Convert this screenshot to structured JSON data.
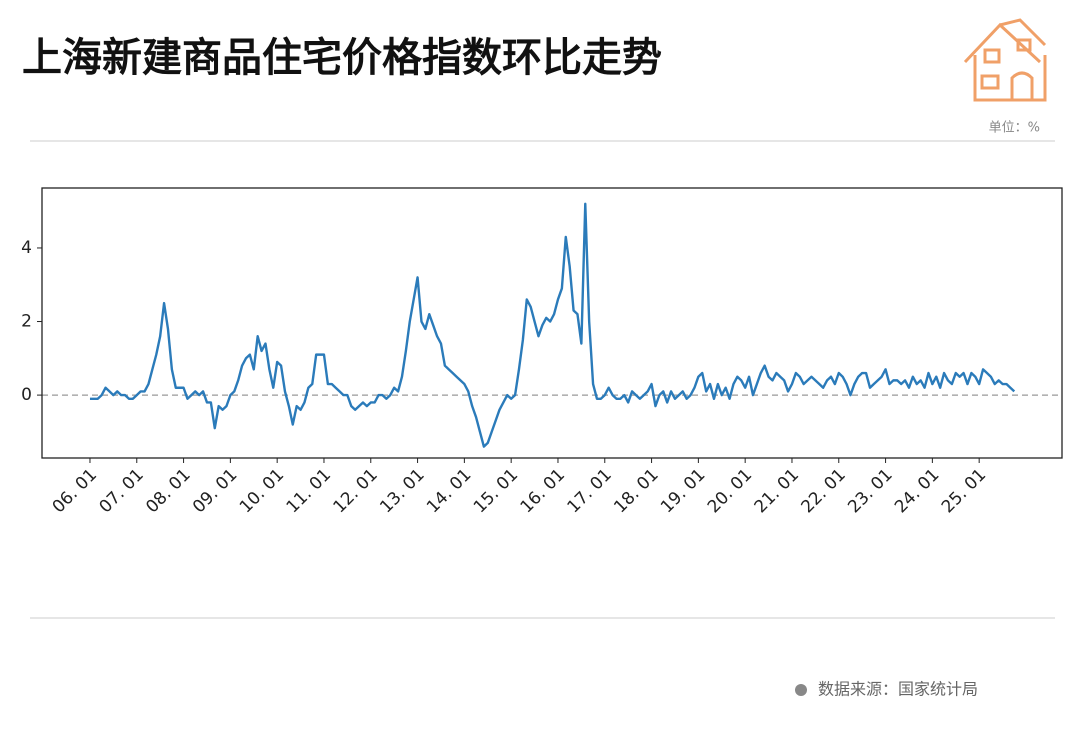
{
  "title": "上海新建商品住宅价格指数环比走势",
  "unit": "单位：%",
  "source": "数据来源：国家统计局",
  "chart_data": {
    "type": "line",
    "grid": false,
    "zero_line": true,
    "categories": [
      "06. 01",
      null,
      null,
      null,
      null,
      null,
      null,
      null,
      null,
      null,
      null,
      null,
      "07. 01",
      null,
      null,
      null,
      null,
      null,
      null,
      null,
      null,
      null,
      null,
      null,
      "08. 01",
      null,
      null,
      null,
      null,
      null,
      null,
      null,
      null,
      null,
      null,
      null,
      "09. 01",
      null,
      null,
      null,
      null,
      null,
      null,
      null,
      null,
      null,
      null,
      null,
      "10. 01",
      null,
      null,
      null,
      null,
      null,
      null,
      null,
      null,
      null,
      null,
      null,
      "11. 01",
      null,
      null,
      null,
      null,
      null,
      null,
      null,
      null,
      null,
      null,
      null,
      "12. 01",
      null,
      null,
      null,
      null,
      null,
      null,
      null,
      null,
      null,
      null,
      null,
      "13. 01",
      null,
      null,
      null,
      null,
      null,
      null,
      null,
      null,
      null,
      null,
      null,
      "14. 01",
      null,
      null,
      null,
      null,
      null,
      null,
      null,
      null,
      null,
      null,
      null,
      "15. 01",
      null,
      null,
      null,
      null,
      null,
      null,
      null,
      null,
      null,
      null,
      null,
      "16. 01",
      null,
      null,
      null,
      null,
      null,
      null,
      null,
      null,
      null,
      null,
      null,
      "17. 01",
      null,
      null,
      null,
      null,
      null,
      null,
      null,
      null,
      null,
      null,
      null,
      "18. 01",
      null,
      null,
      null,
      null,
      null,
      null,
      null,
      null,
      null,
      null,
      null,
      "19. 01",
      null,
      null,
      null,
      null,
      null,
      null,
      null,
      null,
      null,
      null,
      null,
      "20. 01",
      null,
      null,
      null,
      null,
      null,
      null,
      null,
      null,
      null,
      null,
      null,
      "21. 01",
      null,
      null,
      null,
      null,
      null,
      null,
      null,
      null,
      null,
      null,
      null,
      "22. 01",
      null,
      null,
      null,
      null,
      null,
      null,
      null,
      null,
      null,
      null,
      null,
      "23. 01",
      null,
      null,
      null,
      null,
      null,
      null,
      null,
      null,
      null,
      null,
      null,
      "24. 01",
      null,
      null,
      null,
      null,
      null,
      null,
      null,
      null,
      null,
      null,
      null,
      "25. 01",
      null,
      null,
      null,
      null,
      null,
      null,
      null,
      null,
      null
    ],
    "series": [
      {
        "color": "#2b7bba",
        "values": [
          -0.1,
          -0.1,
          -0.1,
          0.0,
          0.2,
          0.1,
          0.0,
          0.1,
          0.0,
          0.0,
          -0.1,
          -0.1,
          0.0,
          0.1,
          0.1,
          0.3,
          0.7,
          1.1,
          1.6,
          2.5,
          1.8,
          0.7,
          0.2,
          0.2,
          0.2,
          -0.1,
          0.0,
          0.1,
          0.0,
          0.1,
          -0.2,
          -0.2,
          -0.9,
          -0.3,
          -0.4,
          -0.3,
          0.0,
          0.1,
          0.4,
          0.8,
          1.0,
          1.1,
          0.7,
          1.6,
          1.2,
          1.4,
          0.7,
          0.2,
          0.9,
          0.8,
          0.1,
          -0.3,
          -0.8,
          -0.3,
          -0.4,
          -0.2,
          0.2,
          0.3,
          1.1,
          1.1,
          1.1,
          0.3,
          0.3,
          0.2,
          0.1,
          0.0,
          0.0,
          -0.3,
          -0.4,
          -0.3,
          -0.2,
          -0.3,
          -0.2,
          -0.2,
          0.0,
          0.0,
          -0.1,
          0.0,
          0.2,
          0.1,
          0.5,
          1.2,
          2.0,
          2.6,
          3.2,
          2.0,
          1.8,
          2.2,
          1.9,
          1.6,
          1.4,
          0.8,
          0.7,
          0.6,
          0.5,
          0.4,
          0.3,
          0.1,
          -0.3,
          -0.6,
          -1.0,
          -1.4,
          -1.3,
          -1.0,
          -0.7,
          -0.4,
          -0.2,
          0.0,
          -0.1,
          0.0,
          0.7,
          1.5,
          2.6,
          2.4,
          2.0,
          1.6,
          1.9,
          2.1,
          2.0,
          2.2,
          2.6,
          2.9,
          4.3,
          3.5,
          2.3,
          2.2,
          1.4,
          5.2,
          2.0,
          0.3,
          -0.1,
          -0.1,
          0.0,
          0.2,
          0.0,
          -0.1,
          -0.1,
          0.0,
          -0.2,
          0.1,
          0.0,
          -0.1,
          0.0,
          0.1,
          0.3,
          -0.3,
          0.0,
          0.1,
          -0.2,
          0.1,
          -0.1,
          0.0,
          0.1,
          -0.1,
          0.0,
          0.2,
          0.5,
          0.6,
          0.1,
          0.3,
          -0.1,
          0.3,
          0.0,
          0.2,
          -0.1,
          0.3,
          0.5,
          0.4,
          0.2,
          0.5,
          0.0,
          0.3,
          0.6,
          0.8,
          0.5,
          0.4,
          0.6,
          0.5,
          0.4,
          0.1,
          0.3,
          0.6,
          0.5,
          0.3,
          0.4,
          0.5,
          0.4,
          0.3,
          0.2,
          0.4,
          0.5,
          0.3,
          0.6,
          0.5,
          0.3,
          0.0,
          0.3,
          0.5,
          0.6,
          0.6,
          0.2,
          0.3,
          0.4,
          0.5,
          0.7,
          0.3,
          0.4,
          0.4,
          0.3,
          0.4,
          0.2,
          0.5,
          0.3,
          0.4,
          0.2,
          0.6,
          0.3,
          0.5,
          0.2,
          0.6,
          0.4,
          0.3,
          0.6,
          0.5,
          0.6,
          0.3,
          0.6,
          0.5,
          0.3,
          0.7,
          0.6,
          0.5,
          0.3,
          0.4,
          0.3,
          0.3,
          0.2,
          0.1
        ]
      }
    ],
    "ylim": [
      -1.71,
      5.63
    ],
    "yticks": [
      0,
      2,
      4
    ]
  }
}
